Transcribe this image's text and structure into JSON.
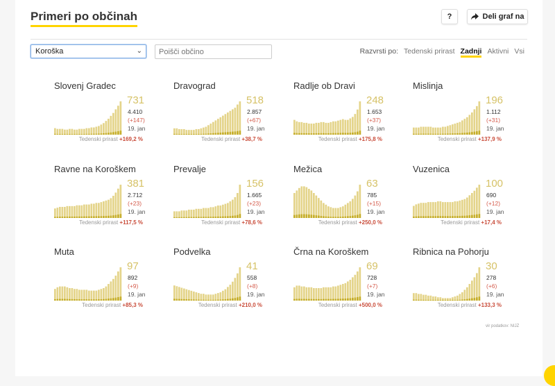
{
  "header": {
    "title": "Primeri po občinah",
    "help_label": "?",
    "share_label": "Deli graf na"
  },
  "controls": {
    "region_selected": "Koroška",
    "search_placeholder": "Poišči občino",
    "sort_label": "Razvrsti po:",
    "sort_options": [
      "Tedenski prirast",
      "Zadnji",
      "Aktivni",
      "Vsi"
    ],
    "sort_active": "Zadnji"
  },
  "colors": {
    "accent": "#ffd400",
    "bar": "#e4d48a",
    "bar_dark": "#c6ae2a",
    "big_number": "#d6c267",
    "increase": "#c94c3a"
  },
  "weekly_label": "Tedenski prirast",
  "source": "vir podatkov: NIJZ",
  "chart_data": [
    {
      "type": "bar",
      "name": "Slovenj Gradec",
      "active": "731",
      "total": "4.410",
      "change": "(+147)",
      "date": "19. jan",
      "weekly": "+169,2 %",
      "values": [
        9,
        8,
        8,
        8,
        7,
        7,
        8,
        8,
        7,
        7,
        8,
        8,
        8,
        9,
        9,
        10,
        10,
        11,
        12,
        14,
        16,
        19,
        22,
        26,
        30,
        35,
        40,
        46
      ]
    },
    {
      "type": "bar",
      "name": "Dravograd",
      "active": "518",
      "total": "2.857",
      "change": "(+67)",
      "date": "19. jan",
      "weekly": "+38,7 %",
      "values": [
        8,
        8,
        7,
        7,
        7,
        6,
        6,
        6,
        6,
        7,
        7,
        8,
        9,
        10,
        12,
        14,
        16,
        18,
        20,
        22,
        24,
        26,
        28,
        30,
        32,
        34,
        38,
        42
      ]
    },
    {
      "type": "bar",
      "name": "Radlje ob Dravi",
      "active": "248",
      "total": "1.653",
      "change": "(+37)",
      "date": "19. jan",
      "weekly": "+175,8 %",
      "values": [
        20,
        18,
        17,
        17,
        16,
        16,
        15,
        15,
        15,
        16,
        16,
        17,
        17,
        16,
        16,
        17,
        18,
        18,
        19,
        20,
        21,
        20,
        20,
        22,
        24,
        28,
        34,
        45
      ]
    },
    {
      "type": "bar",
      "name": "Mislinja",
      "active": "196",
      "total": "1.112",
      "change": "(+31)",
      "date": "19. jan",
      "weekly": "+137,9 %",
      "values": [
        9,
        9,
        9,
        10,
        10,
        10,
        10,
        10,
        9,
        9,
        9,
        9,
        10,
        10,
        11,
        12,
        13,
        14,
        15,
        16,
        18,
        20,
        22,
        25,
        28,
        32,
        36,
        42
      ]
    },
    {
      "type": "bar",
      "name": "Ravne na Koroškem",
      "active": "381",
      "total": "2.712",
      "change": "(+23)",
      "date": "19. jan",
      "weekly": "+117,5 %",
      "values": [
        12,
        13,
        14,
        14,
        14,
        15,
        15,
        15,
        15,
        16,
        16,
        16,
        17,
        17,
        17,
        18,
        18,
        19,
        19,
        20,
        21,
        22,
        23,
        25,
        28,
        32,
        37,
        42
      ]
    },
    {
      "type": "bar",
      "name": "Prevalje",
      "active": "156",
      "total": "1.665",
      "change": "(+23)",
      "date": "19. jan",
      "weekly": "+78,6 %",
      "values": [
        8,
        8,
        8,
        9,
        9,
        9,
        10,
        10,
        10,
        11,
        11,
        11,
        12,
        12,
        12,
        13,
        13,
        14,
        15,
        15,
        16,
        17,
        18,
        20,
        22,
        25,
        30,
        40
      ]
    },
    {
      "type": "bar",
      "name": "Mežica",
      "active": "63",
      "total": "785",
      "change": "(+15)",
      "date": "19. jan",
      "weekly": "+250,0 %",
      "values": [
        30,
        33,
        36,
        38,
        38,
        37,
        35,
        33,
        30,
        27,
        24,
        21,
        18,
        16,
        14,
        13,
        12,
        12,
        12,
        13,
        14,
        16,
        18,
        20,
        23,
        27,
        32,
        40
      ]
    },
    {
      "type": "bar",
      "name": "Vuzenica",
      "active": "100",
      "total": "690",
      "change": "(+12)",
      "date": "19. jan",
      "weekly": "+17,4 %",
      "values": [
        16,
        18,
        19,
        20,
        20,
        20,
        21,
        21,
        21,
        21,
        22,
        22,
        21,
        21,
        21,
        21,
        21,
        22,
        22,
        23,
        24,
        25,
        27,
        30,
        33,
        36,
        40,
        44
      ]
    },
    {
      "type": "bar",
      "name": "Muta",
      "active": "97",
      "total": "892",
      "change": "(+9)",
      "date": "19. jan",
      "weekly": "+85,3 %",
      "values": [
        14,
        16,
        17,
        17,
        17,
        16,
        15,
        15,
        14,
        14,
        13,
        13,
        13,
        13,
        12,
        12,
        12,
        12,
        13,
        14,
        15,
        17,
        20,
        23,
        26,
        30,
        35,
        40
      ]
    },
    {
      "type": "bar",
      "name": "Podvelka",
      "active": "41",
      "total": "558",
      "change": "(+8)",
      "date": "19. jan",
      "weekly": "+210,0 %",
      "values": [
        20,
        19,
        18,
        17,
        16,
        15,
        14,
        13,
        12,
        11,
        10,
        9,
        9,
        8,
        8,
        8,
        8,
        9,
        10,
        11,
        13,
        15,
        18,
        21,
        25,
        30,
        36,
        44
      ]
    },
    {
      "type": "bar",
      "name": "Črna na Koroškem",
      "active": "69",
      "total": "728",
      "change": "(+7)",
      "date": "19. jan",
      "weekly": "+500,0 %",
      "values": [
        16,
        18,
        18,
        17,
        17,
        16,
        16,
        16,
        15,
        15,
        15,
        15,
        16,
        16,
        16,
        16,
        17,
        17,
        18,
        19,
        20,
        21,
        23,
        25,
        28,
        31,
        35,
        40
      ]
    },
    {
      "type": "bar",
      "name": "Ribnica na Pohorju",
      "active": "30",
      "total": "278",
      "change": "(+6)",
      "date": "19. jan",
      "weekly": "+133,3 %",
      "values": [
        9,
        9,
        8,
        8,
        7,
        7,
        6,
        6,
        5,
        5,
        4,
        4,
        3,
        3,
        3,
        3,
        4,
        5,
        6,
        8,
        10,
        13,
        16,
        20,
        24,
        28,
        33,
        40
      ]
    }
  ]
}
